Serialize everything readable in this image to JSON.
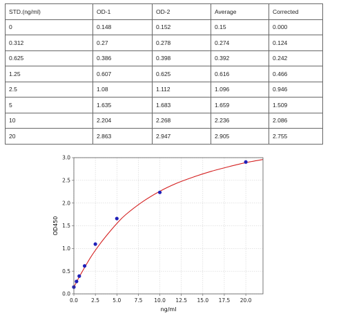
{
  "table": {
    "headers": [
      "STD.(ng/ml)",
      "OD-1",
      "OD-2",
      "Average",
      "Corrected"
    ],
    "rows": [
      [
        "0",
        "0.148",
        "0.152",
        "0.15",
        "0.000"
      ],
      [
        "0.312",
        "0.27",
        "0.278",
        "0.274",
        "0.124"
      ],
      [
        "0.625",
        "0.386",
        "0.398",
        "0.392",
        "0.242"
      ],
      [
        "1.25",
        "0.607",
        "0.625",
        "0.616",
        "0.466"
      ],
      [
        "2.5",
        "1.08",
        "1.112",
        "1.096",
        "0.946"
      ],
      [
        "5",
        "1.635",
        "1.683",
        "1.659",
        "1.509"
      ],
      [
        "10",
        "2.204",
        "2.268",
        "2.236",
        "2.086"
      ],
      [
        "20",
        "2.863",
        "2.947",
        "2.905",
        "2.755"
      ]
    ]
  },
  "chart_data": {
    "type": "scatter",
    "xlabel": "ng/ml",
    "ylabel": "OD450",
    "xlim": [
      0,
      22
    ],
    "ylim": [
      0,
      3.0
    ],
    "xticks": [
      "0.0",
      "2.5",
      "5.0",
      "7.5",
      "10.0",
      "12.5",
      "15.0",
      "17.5",
      "20.0"
    ],
    "yticks": [
      "0.0",
      "0.5",
      "1.0",
      "1.5",
      "2.0",
      "2.5",
      "3.0"
    ],
    "grid": true,
    "points": {
      "x": [
        0,
        0.312,
        0.625,
        1.25,
        2.5,
        5,
        10,
        20
      ],
      "y": [
        0.15,
        0.274,
        0.392,
        0.616,
        1.096,
        1.659,
        2.236,
        2.905
      ]
    },
    "fit_curve": {
      "x": [
        0,
        0.5,
        1,
        2,
        3,
        4,
        5,
        6,
        8,
        10,
        12,
        14,
        16,
        18,
        20,
        22
      ],
      "y": [
        0.15,
        0.33,
        0.5,
        0.82,
        1.09,
        1.33,
        1.55,
        1.74,
        2.03,
        2.26,
        2.44,
        2.58,
        2.7,
        2.8,
        2.89,
        2.96
      ]
    },
    "colors": {
      "points": "#1f1fb8",
      "curve": "#d42020",
      "grid": "#c8c8c8",
      "frame": "#555555"
    }
  }
}
